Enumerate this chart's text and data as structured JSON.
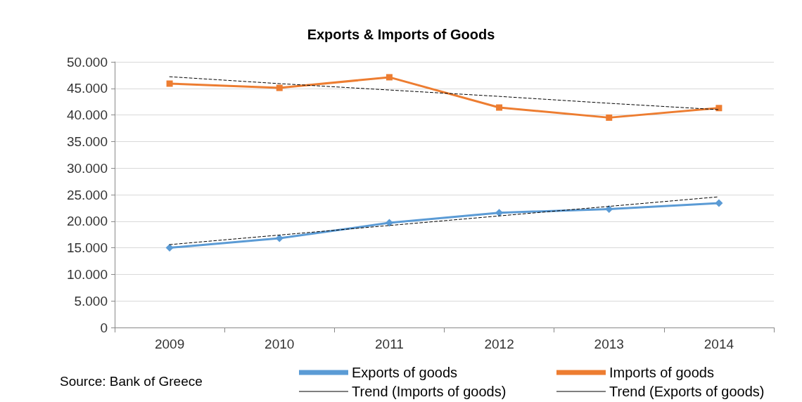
{
  "chart_data": {
    "type": "line",
    "title": "Exports & Imports of Goods",
    "categories": [
      "2009",
      "2010",
      "2011",
      "2012",
      "2013",
      "2014"
    ],
    "series": [
      {
        "name": "Exports of goods",
        "color": "#5b9bd5",
        "marker": "diamond",
        "values": [
          15000,
          16800,
          19700,
          21600,
          22300,
          23400
        ]
      },
      {
        "name": "Imports of goods",
        "color": "#ed7d31",
        "marker": "square",
        "values": [
          45900,
          45100,
          47100,
          41400,
          39500,
          41300
        ]
      },
      {
        "name": "Trend (Imports of goods)",
        "color": "#000000",
        "marker": "none",
        "line_style": "dashed",
        "values": [
          47200,
          45900,
          44700,
          43500,
          42200,
          41000
        ]
      },
      {
        "name": "Trend (Exports of goods)",
        "color": "#000000",
        "marker": "none",
        "line_style": "dashed",
        "values": [
          15600,
          17400,
          19200,
          21000,
          22800,
          24600
        ]
      }
    ],
    "ylim": [
      0,
      50000
    ],
    "yticks": [
      0,
      {
        "value": 5000,
        "label": "5.000"
      },
      {
        "value": 10000,
        "label": "10.000"
      },
      {
        "value": 15000,
        "label": "15.000"
      },
      {
        "value": 20000,
        "label": "20.000"
      },
      {
        "value": 25000,
        "label": "25.000"
      },
      {
        "value": 30000,
        "label": "30.000"
      },
      {
        "value": 35000,
        "label": "35.000"
      },
      {
        "value": 40000,
        "label": "40.000"
      },
      {
        "value": 45000,
        "label": "45.000"
      },
      {
        "value": 50000,
        "label": "50.000"
      }
    ],
    "grid": "y",
    "legend": "bottom",
    "annotations": [
      "Source: Bank of Greece"
    ]
  }
}
